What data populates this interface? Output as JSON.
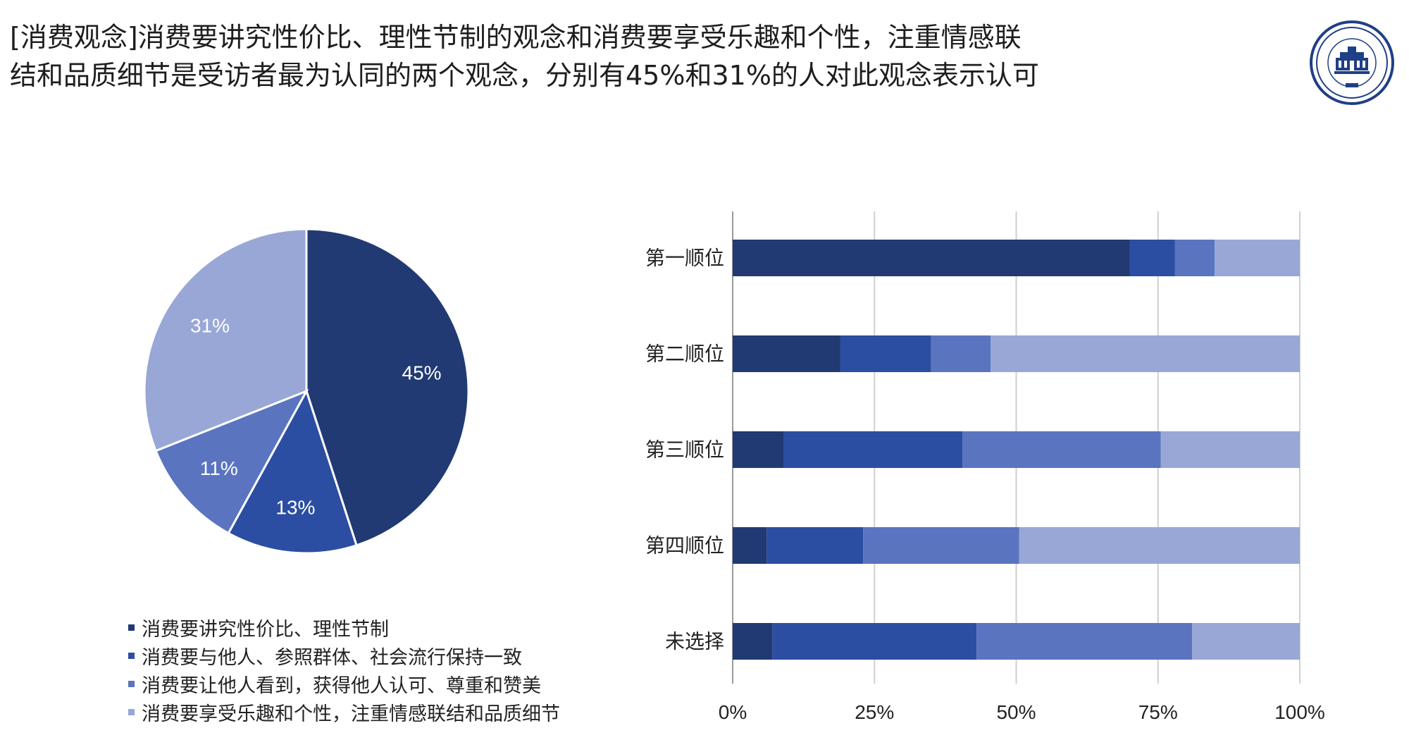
{
  "headline": {
    "line1": "[消费观念]消费要讲究性价比、理性节制的观念和消费要享受乐趣和个性，注重情感联",
    "line2": "结和品质细节是受访者最为认同的两个观念，分别有45%和31%的人对此观念表示认可"
  },
  "logo": {
    "icon": "university-seal-icon",
    "ring_color": "#1f3f86"
  },
  "colors": [
    "#223a73",
    "#2c4ea2",
    "#5a74c0",
    "#98a7d6"
  ],
  "chart_data": [
    {
      "type": "pie",
      "categories": [
        "消费要讲究性价比、理性节制",
        "消费要与他人、参照群体、社会流行保持一致",
        "消费要让他人看到，获得他人认可、尊重和赞美",
        "消费要享受乐趣和个性，注重情感联结和品质细节"
      ],
      "values": [
        45,
        13,
        11,
        31
      ],
      "data_labels": [
        "45%",
        "13%",
        "11%",
        "31%"
      ],
      "legend_position": "bottom"
    },
    {
      "type": "bar",
      "orientation": "horizontal",
      "stacked": "percent",
      "categories": [
        "第一顺位",
        "第二顺位",
        "第三顺位",
        "第四顺位",
        "未选择"
      ],
      "series": [
        {
          "values": [
            70,
            19,
            9,
            6,
            7
          ]
        },
        {
          "values": [
            8,
            16,
            31.5,
            17,
            36
          ]
        },
        {
          "values": [
            7,
            10.5,
            35,
            27.5,
            38
          ]
        },
        {
          "values": [
            15,
            54.5,
            24.5,
            49.5,
            19
          ]
        }
      ],
      "xlim": [
        0,
        100
      ],
      "xticks": [
        "0%",
        "25%",
        "50%",
        "75%",
        "100%"
      ],
      "grid": "vertical"
    }
  ]
}
